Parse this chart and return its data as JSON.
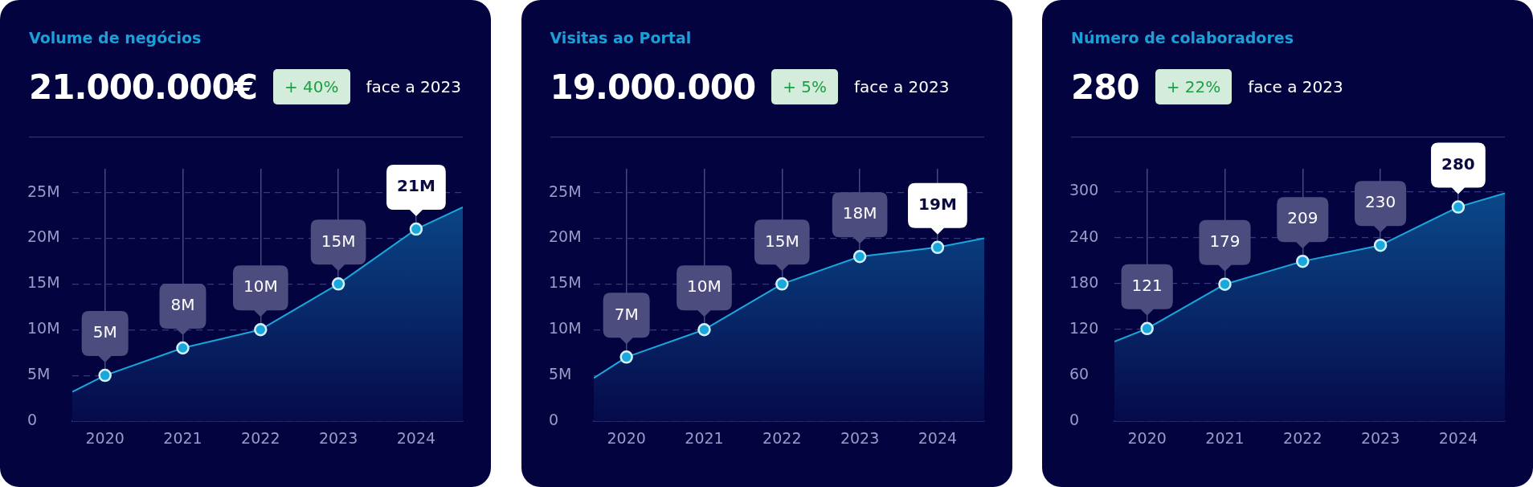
{
  "chart_data": [
    {
      "type": "area",
      "title": "Volume de negócios",
      "subtitle": "21.000.000€",
      "annotations": [
        "+ 40%",
        "face a 2023"
      ],
      "xlim": [
        2019.58,
        2024.6
      ],
      "xticks": [
        2020,
        2021,
        2022,
        2023,
        2024
      ],
      "ylim": [
        0,
        27.6
      ],
      "yticks": [
        {
          "value": 0,
          "label": "0"
        },
        {
          "value": 5,
          "label": "5M"
        },
        {
          "value": 10,
          "label": "10M"
        },
        {
          "value": 15,
          "label": "15M"
        },
        {
          "value": 20,
          "label": "20M"
        },
        {
          "value": 25,
          "label": "25M"
        }
      ],
      "grid": true,
      "legend": false,
      "marker": "circle",
      "series": [
        {
          "color": "#1aa7dc",
          "x": [
            2019.58,
            2020,
            2021,
            2022,
            2023,
            2024,
            2024.6
          ],
          "values": [
            3.2,
            5,
            8,
            10,
            15,
            21,
            23.4
          ],
          "value_labels": [
            null,
            "5M",
            "8M",
            "10M",
            "15M",
            "21M",
            null
          ]
        }
      ]
    },
    {
      "type": "area",
      "title": "Visitas ao Portal",
      "subtitle": "19.000.000",
      "annotations": [
        "+ 5%",
        "face a 2023"
      ],
      "xlim": [
        2019.58,
        2024.6
      ],
      "xticks": [
        2020,
        2021,
        2022,
        2023,
        2024
      ],
      "ylim": [
        0,
        27.6
      ],
      "yticks": [
        {
          "value": 0,
          "label": "0"
        },
        {
          "value": 5,
          "label": "5M"
        },
        {
          "value": 10,
          "label": "10M"
        },
        {
          "value": 15,
          "label": "15M"
        },
        {
          "value": 20,
          "label": "20M"
        },
        {
          "value": 25,
          "label": "25M"
        }
      ],
      "grid": true,
      "legend": false,
      "marker": "circle",
      "series": [
        {
          "color": "#1aa7dc",
          "x": [
            2019.58,
            2020,
            2021,
            2022,
            2023,
            2024,
            2024.6
          ],
          "values": [
            4.7,
            7,
            10,
            15,
            18,
            19,
            20
          ],
          "value_labels": [
            null,
            "7M",
            "10M",
            "15M",
            "18M",
            "19M",
            null
          ]
        }
      ]
    },
    {
      "type": "area",
      "title": "Número de colaboradores",
      "subtitle": "280",
      "annotations": [
        "+ 22%",
        "face a 2023"
      ],
      "xlim": [
        2019.58,
        2024.6
      ],
      "xticks": [
        2020,
        2021,
        2022,
        2023,
        2024
      ],
      "ylim": [
        0,
        330
      ],
      "yticks": [
        0,
        60,
        120,
        180,
        240,
        300
      ],
      "grid": true,
      "legend": false,
      "marker": "circle",
      "series": [
        {
          "color": "#1aa7dc",
          "x": [
            2019.58,
            2020,
            2021,
            2022,
            2023,
            2024,
            2024.6
          ],
          "values": [
            104,
            121,
            179,
            209,
            230,
            280,
            298
          ],
          "value_labels": [
            null,
            "121",
            "179",
            "209",
            "230",
            "280",
            null
          ]
        }
      ]
    }
  ]
}
